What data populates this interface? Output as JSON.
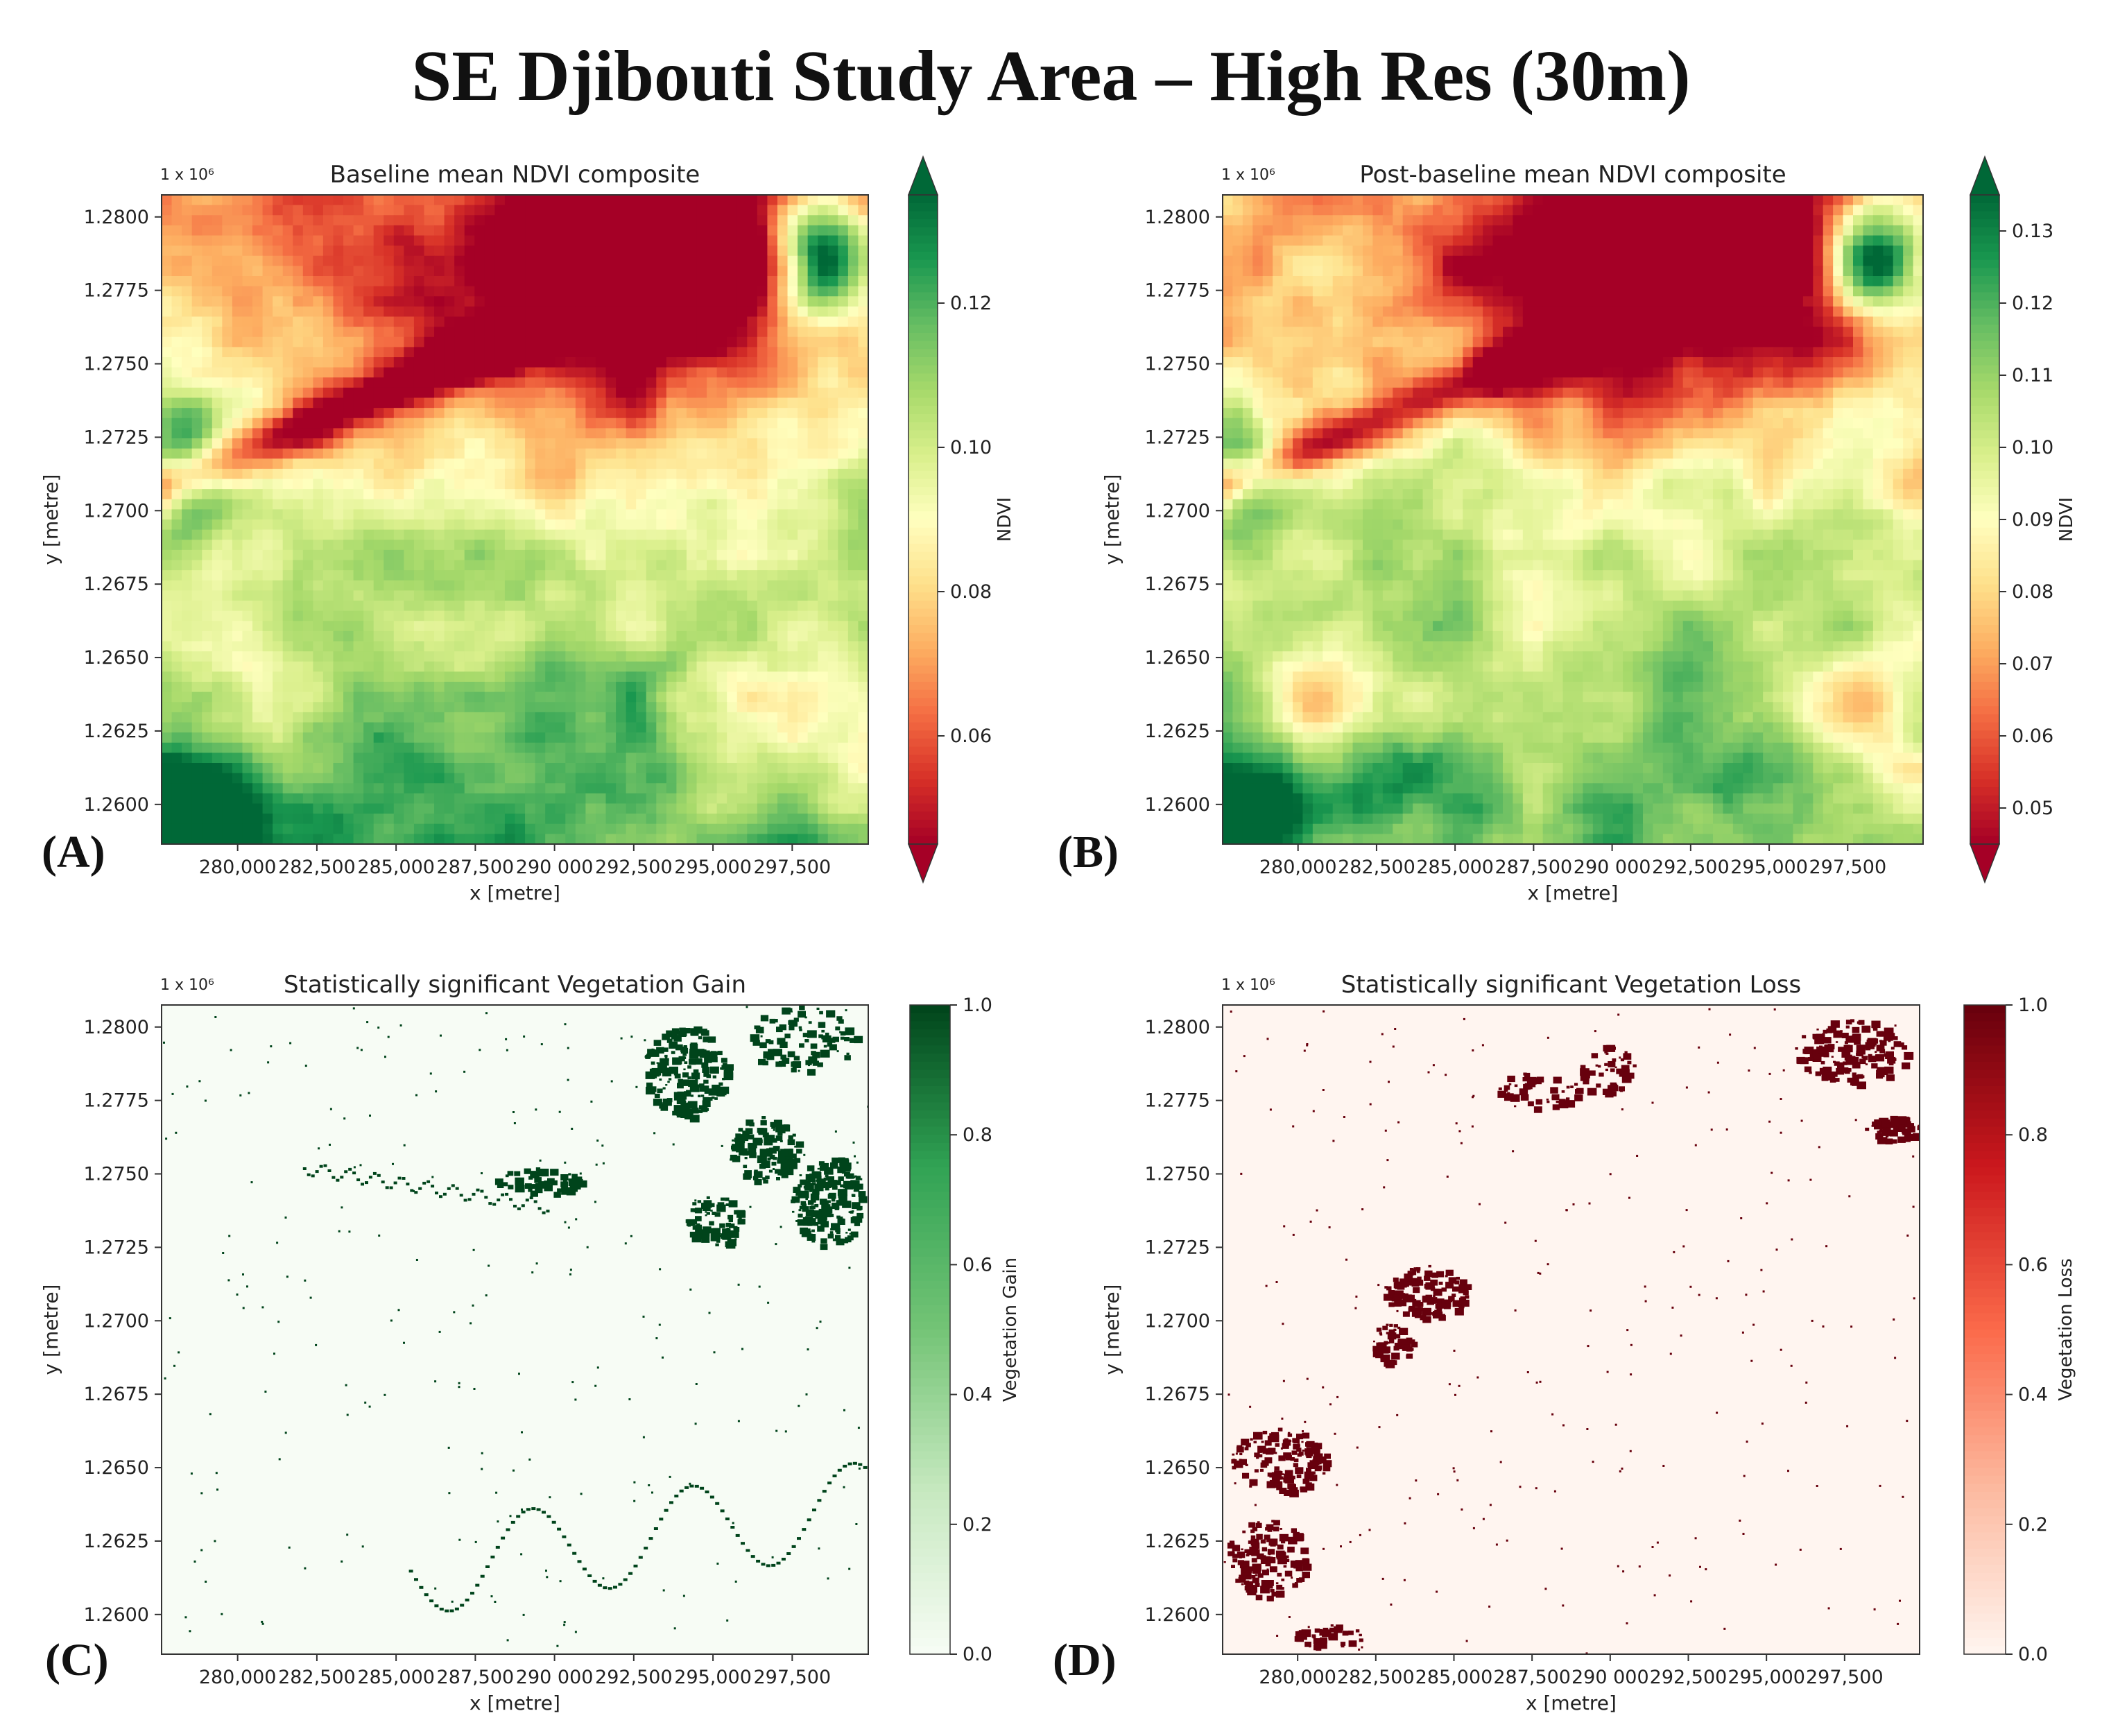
{
  "figure": {
    "title": "SE Djibouti Study Area – High Res (30m)"
  },
  "chart_data": [
    {
      "panel": "(A)",
      "type": "heatmap",
      "title": "Baseline mean NDVI composite",
      "xlabel": "x [metre]",
      "ylabel": "y [metre]",
      "y_offset_label": "1 x 10⁶",
      "x_ticks": [
        "280,000",
        "282,500",
        "285,000",
        "287,500",
        "290 000",
        "292,500",
        "295,000",
        "297,500"
      ],
      "x_tick_values": [
        280000,
        282500,
        285000,
        287500,
        290000,
        292500,
        295000,
        297500
      ],
      "y_ticks": [
        "1.2800",
        "1.2775",
        "1.2750",
        "1.2725",
        "1.2700",
        "1.2675",
        "1.2650",
        "1.2625",
        "1.2600"
      ],
      "y_tick_values": [
        1.28,
        1.2775,
        1.275,
        1.2725,
        1.27,
        1.2675,
        1.265,
        1.2625,
        1.26
      ],
      "xlim": [
        277600,
        299900
      ],
      "ylim": [
        1.25865,
        1.28075
      ],
      "colorbar": {
        "label": "NDVI",
        "colormap": "RdYlGn",
        "extend": "both",
        "range": [
          0.045,
          0.135
        ],
        "ticks": [
          "0.06",
          "0.08",
          "0.10",
          "0.12"
        ],
        "tick_values": [
          0.06,
          0.08,
          0.1,
          0.12
        ]
      },
      "colors": [
        "#a50026",
        "#d73027",
        "#f46d43",
        "#fdae61",
        "#fee08b",
        "#ffffbf",
        "#d9ef8b",
        "#a6d96a",
        "#66bd63",
        "#1a9850",
        "#006837"
      ]
    },
    {
      "panel": "(B)",
      "type": "heatmap",
      "title": "Post-baseline mean NDVI composite",
      "xlabel": "x [metre]",
      "ylabel": "y [metre]",
      "y_offset_label": "1 x 10⁶",
      "x_ticks": [
        "280,000",
        "282,500",
        "285,000",
        "287,500",
        "290 000",
        "292,500",
        "295,000",
        "297,500"
      ],
      "x_tick_values": [
        280000,
        282500,
        285000,
        287500,
        290000,
        292500,
        295000,
        297500
      ],
      "y_ticks": [
        "1.2800",
        "1.2775",
        "1.2750",
        "1.2725",
        "1.2700",
        "1.2675",
        "1.2650",
        "1.2625",
        "1.2600"
      ],
      "y_tick_values": [
        1.28,
        1.2775,
        1.275,
        1.2725,
        1.27,
        1.2675,
        1.265,
        1.2625,
        1.26
      ],
      "xlim": [
        277600,
        299900
      ],
      "ylim": [
        1.25865,
        1.28075
      ],
      "colorbar": {
        "label": "NDVI",
        "colormap": "RdYlGn",
        "extend": "both",
        "range": [
          0.045,
          0.135
        ],
        "ticks": [
          "0.05",
          "0.06",
          "0.07",
          "0.08",
          "0.09",
          "0.10",
          "0.11",
          "0.12",
          "0.13"
        ],
        "tick_values": [
          0.05,
          0.06,
          0.07,
          0.08,
          0.09,
          0.1,
          0.11,
          0.12,
          0.13
        ]
      },
      "colors": [
        "#a50026",
        "#d73027",
        "#f46d43",
        "#fdae61",
        "#fee08b",
        "#ffffbf",
        "#d9ef8b",
        "#a6d96a",
        "#66bd63",
        "#1a9850",
        "#006837"
      ]
    },
    {
      "panel": "(C)",
      "type": "heatmap",
      "title": "Statistically significant Vegetation Gain",
      "xlabel": "x [metre]",
      "ylabel": "y [metre]",
      "y_offset_label": "1 x 10⁶",
      "x_ticks": [
        "280,000",
        "282,500",
        "285,000",
        "287,500",
        "290 000",
        "292,500",
        "295,000",
        "297,500"
      ],
      "x_tick_values": [
        280000,
        282500,
        285000,
        287500,
        290000,
        292500,
        295000,
        297500
      ],
      "y_ticks": [
        "1.2800",
        "1.2775",
        "1.2750",
        "1.2725",
        "1.2700",
        "1.2675",
        "1.2650",
        "1.2625",
        "1.2600"
      ],
      "y_tick_values": [
        1.28,
        1.2775,
        1.275,
        1.2725,
        1.27,
        1.2675,
        1.265,
        1.2625,
        1.26
      ],
      "xlim": [
        277600,
        299900
      ],
      "ylim": [
        1.25865,
        1.28075
      ],
      "colorbar": {
        "label": "Vegetation Gain",
        "colormap": "Greens",
        "extend": "neither",
        "range": [
          0,
          1
        ],
        "ticks": [
          "0.0",
          "0.2",
          "0.4",
          "0.6",
          "0.8",
          "1.0"
        ],
        "tick_values": [
          0,
          0.2,
          0.4,
          0.6,
          0.8,
          1.0
        ]
      },
      "colors": [
        "#f7fcf5",
        "#c7e9c0",
        "#74c476",
        "#31a354",
        "#00441b"
      ]
    },
    {
      "panel": "(D)",
      "type": "heatmap",
      "title": "Statistically significant Vegetation Loss",
      "xlabel": "x [metre]",
      "ylabel": "y [metre]",
      "y_offset_label": "1 x 10⁶",
      "x_ticks": [
        "280,000",
        "282,500",
        "285,000",
        "287,500",
        "290 000",
        "292,500",
        "295,000",
        "297,500"
      ],
      "x_tick_values": [
        280000,
        282500,
        285000,
        287500,
        290000,
        292500,
        295000,
        297500
      ],
      "y_ticks": [
        "1.2800",
        "1.2775",
        "1.2750",
        "1.2725",
        "1.2700",
        "1.2675",
        "1.2650",
        "1.2625",
        "1.2600"
      ],
      "y_tick_values": [
        1.28,
        1.2775,
        1.275,
        1.2725,
        1.27,
        1.2675,
        1.265,
        1.2625,
        1.26
      ],
      "xlim": [
        277600,
        299900
      ],
      "ylim": [
        1.25865,
        1.28075
      ],
      "colorbar": {
        "label": "Vegetation Loss",
        "colormap": "Reds",
        "extend": "neither",
        "range": [
          0,
          1
        ],
        "ticks": [
          "0.0",
          "0.2",
          "0.4",
          "0.6",
          "0.8",
          "1.0"
        ],
        "tick_values": [
          0,
          0.2,
          0.4,
          0.6,
          0.8,
          1.0
        ]
      },
      "colors": [
        "#fff5f0",
        "#fcbba1",
        "#fb6a4a",
        "#cb181d",
        "#67000d"
      ]
    }
  ]
}
